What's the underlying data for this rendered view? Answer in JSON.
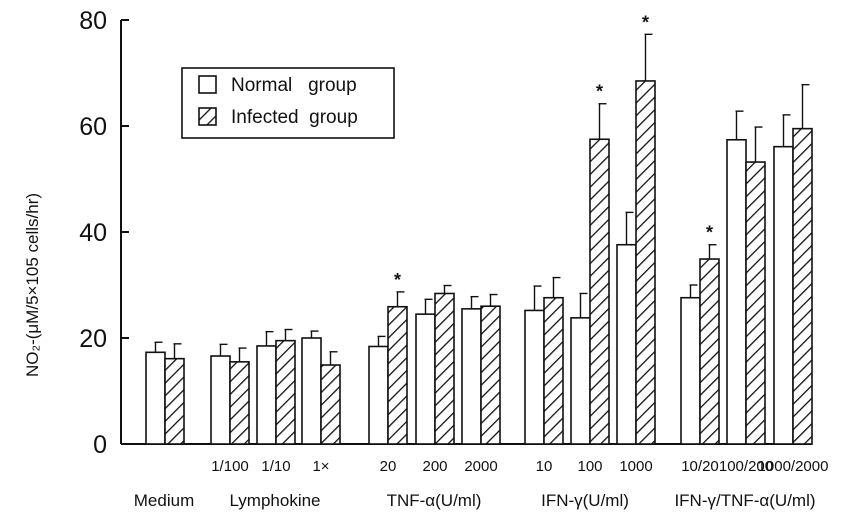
{
  "chart_data": {
    "type": "bar",
    "ylabel": "NO₂-(μM/5×105 cells/hr)",
    "ylim": [
      0,
      80
    ],
    "yticks": [
      "0",
      "20",
      "40",
      "60",
      "80"
    ],
    "legend": {
      "placement": "top-left",
      "entries": [
        "Normal   group",
        "Infected  group"
      ]
    },
    "series_styles": {
      "normal": "white fill",
      "infected": "diagonal hatch"
    },
    "groups": [
      {
        "label": "Medium",
        "bars": [
          {
            "sub": "",
            "normal": 17.3,
            "normal_err": 1.9,
            "infected": 16.1,
            "infected_err": 2.8,
            "sig": false
          }
        ]
      },
      {
        "label": "Lymphokine",
        "bars": [
          {
            "sub": "1/100",
            "normal": 16.6,
            "normal_err": 2.2,
            "infected": 15.5,
            "infected_err": 2.6,
            "sig": false
          },
          {
            "sub": "1/10",
            "normal": 18.5,
            "normal_err": 2.7,
            "infected": 19.5,
            "infected_err": 2.1,
            "sig": false
          },
          {
            "sub": "1×",
            "normal": 20.0,
            "normal_err": 1.3,
            "infected": 14.9,
            "infected_err": 2.5,
            "sig": false
          }
        ]
      },
      {
        "label": "TNF-α(U/ml)",
        "bars": [
          {
            "sub": "20",
            "normal": 18.4,
            "normal_err": 1.9,
            "infected": 25.9,
            "infected_err": 2.8,
            "sig": true
          },
          {
            "sub": "200",
            "normal": 24.5,
            "normal_err": 2.8,
            "infected": 28.4,
            "infected_err": 1.5,
            "sig": false
          },
          {
            "sub": "2000",
            "normal": 25.5,
            "normal_err": 2.3,
            "infected": 26.0,
            "infected_err": 2.2,
            "sig": false
          }
        ]
      },
      {
        "label": "IFN-γ(U/ml)",
        "bars": [
          {
            "sub": "10",
            "normal": 25.2,
            "normal_err": 4.6,
            "infected": 27.6,
            "infected_err": 3.8,
            "sig": false
          },
          {
            "sub": "100",
            "normal": 23.8,
            "normal_err": 4.6,
            "infected": 57.5,
            "infected_err": 6.7,
            "sig": true
          },
          {
            "sub": "1000",
            "normal": 37.6,
            "normal_err": 6.1,
            "infected": 68.5,
            "infected_err": 8.8,
            "sig": true
          }
        ]
      },
      {
        "label": "IFN-γ/TNF-α(U/ml)",
        "bars": [
          {
            "sub": "10/20",
            "normal": 27.6,
            "normal_err": 2.4,
            "infected": 34.9,
            "infected_err": 2.7,
            "sig": true
          },
          {
            "sub": "100/200",
            "normal": 57.4,
            "normal_err": 5.4,
            "infected": 53.2,
            "infected_err": 6.6,
            "sig": false
          },
          {
            "sub": "1000/2000",
            "normal": 56.1,
            "normal_err": 6.0,
            "infected": 59.5,
            "infected_err": 8.3,
            "sig": false
          }
        ]
      }
    ],
    "significance_marker": "*"
  }
}
